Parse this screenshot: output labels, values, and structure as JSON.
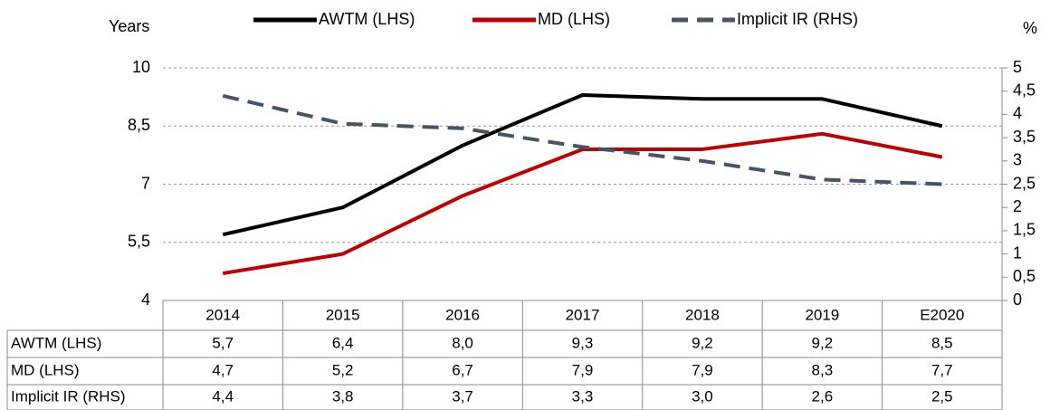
{
  "chart_data": {
    "type": "line",
    "y_label": "Years",
    "y2_label": "%",
    "categories": [
      "2014",
      "2015",
      "2016",
      "2017",
      "2018",
      "2019",
      "E2020"
    ],
    "series": [
      {
        "name": "AWTM (LHS)",
        "color": "#000000",
        "values": [
          5.7,
          6.4,
          8.0,
          9.3,
          9.2,
          9.2,
          8.5
        ],
        "value_labels": [
          "5,7",
          "6,4",
          "8,0",
          "9,3",
          "9,2",
          "9,2",
          "8,5"
        ]
      },
      {
        "name": "MD (LHS)",
        "color": "#c00000",
        "values": [
          4.7,
          5.2,
          6.7,
          7.9,
          7.9,
          8.3,
          7.7
        ],
        "value_labels": [
          "4,7",
          "5,2",
          "6,7",
          "7,9",
          "7,9",
          "8,3",
          "7,7"
        ]
      },
      {
        "name": "Implicit IR (RHS)",
        "color": "#44546a",
        "dashed": true,
        "axis": "y2",
        "values": [
          4.4,
          3.8,
          3.7,
          3.3,
          3.0,
          2.6,
          2.5
        ],
        "value_labels": [
          "4,4",
          "3,8",
          "3,7",
          "3,3",
          "3,0",
          "2,6",
          "2,5"
        ]
      }
    ],
    "ylim": [
      4,
      10
    ],
    "yticks": [
      4,
      {
        "value": 5.5,
        "label": "5,5"
      },
      7,
      {
        "value": 8.5,
        "label": "8,5"
      },
      10
    ],
    "y2lim": [
      0,
      5
    ],
    "y2ticks": [
      0,
      {
        "value": 0.5,
        "label": "0,5"
      },
      1,
      {
        "value": 1.5,
        "label": "1,5"
      },
      2,
      {
        "value": 2.5,
        "label": "2,5"
      },
      3,
      {
        "value": 3.5,
        "label": "3,5"
      },
      4,
      {
        "value": 4.5,
        "label": "4,5"
      },
      5
    ],
    "grid": true
  }
}
